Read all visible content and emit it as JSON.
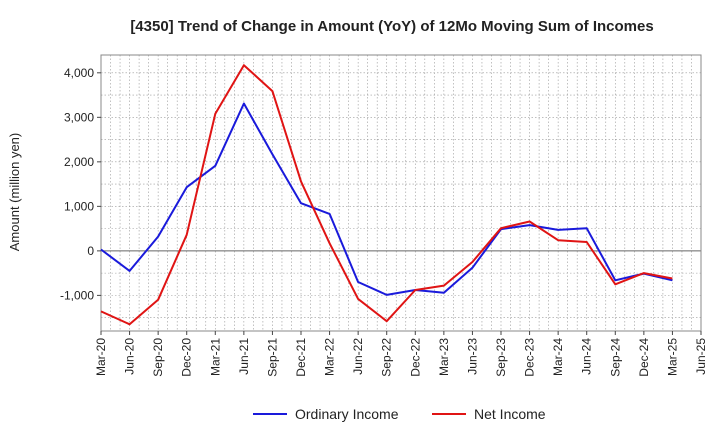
{
  "chart_data": {
    "type": "line",
    "title": "[4350]  Trend of Change in Amount (YoY) of 12Mo Moving Sum of Incomes",
    "xlabel": "",
    "ylabel": "Amount (million yen)",
    "categories": [
      "Mar-20",
      "Jun-20",
      "Sep-20",
      "Dec-20",
      "Mar-21",
      "Jun-21",
      "Sep-21",
      "Dec-21",
      "Mar-22",
      "Jun-22",
      "Sep-22",
      "Dec-22",
      "Mar-23",
      "Jun-23",
      "Sep-23",
      "Dec-23",
      "Mar-24",
      "Jun-24",
      "Sep-24",
      "Dec-24",
      "Mar-25",
      "Jun-25"
    ],
    "ylim": [
      -1800,
      4400
    ],
    "yticks": [
      -1000,
      0,
      1000,
      2000,
      3000,
      4000
    ],
    "ytick_labels": [
      "-1,000",
      "0",
      "1,000",
      "2,000",
      "3,000",
      "4,000"
    ],
    "grid": true,
    "legend_position": "bottom",
    "series": [
      {
        "name": "Ordinary Income",
        "color": "#1a1adb",
        "values": [
          30,
          -450,
          320,
          1430,
          1910,
          3310,
          2170,
          1070,
          830,
          -700,
          -990,
          -880,
          -940,
          -380,
          490,
          580,
          470,
          510,
          -660,
          -510,
          -660,
          null
        ]
      },
      {
        "name": "Net Income",
        "color": "#e01414",
        "values": [
          -1360,
          -1650,
          -1100,
          360,
          3080,
          4170,
          3590,
          1560,
          170,
          -1080,
          -1580,
          -880,
          -780,
          -250,
          510,
          660,
          240,
          200,
          -750,
          -500,
          -620,
          null
        ]
      }
    ]
  }
}
